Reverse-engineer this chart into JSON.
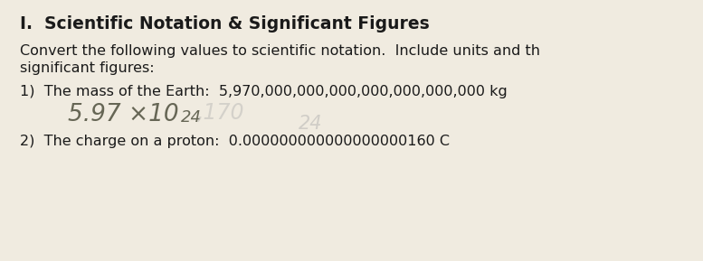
{
  "bg_color": "#f0ebe0",
  "title": "I.  Scientific Notation & Significant Figures",
  "line1": "Convert the following values to scientific notation.  Include units and th",
  "line2": "significant figures:",
  "item1_label": "1)  The mass of the Earth:  5,970,000,000,000,000,000,000,000 kg",
  "item1_base": "5.97 ×10",
  "item1_exp": "24",
  "item1_exp2": "24",
  "item2_label": "2)  The charge on a proton:  0.000000000000000000160 C",
  "title_fontsize": 13.5,
  "body_fontsize": 11.5,
  "handwriting_fontsize": 19,
  "handwriting_exp_fontsize": 13,
  "text_color": "#1a1a1a",
  "hw_color": "#666655",
  "hw_color2": "#aaaaaa"
}
